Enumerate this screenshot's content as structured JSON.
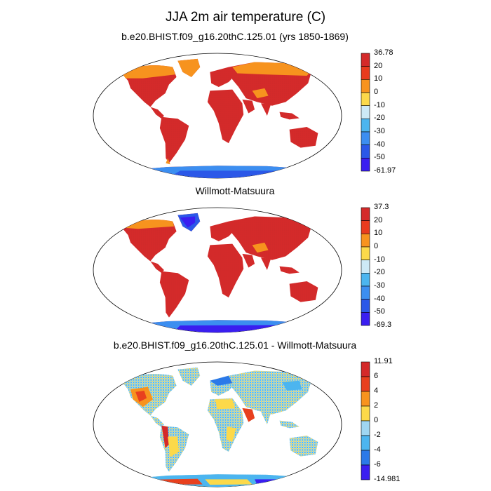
{
  "title": "JJA 2m air temperature (C)",
  "panels": [
    {
      "name": "model",
      "title": "b.e20.BHIST.f09_g16.20thC.125.01 (yrs 1850-1869)",
      "colorbar": {
        "labels": [
          "36.78",
          "20",
          "10",
          "0",
          "-10",
          "-20",
          "-30",
          "-40",
          "-50",
          "-61.97"
        ],
        "colors": [
          "#d42a2a",
          "#e83b1e",
          "#f7931e",
          "#fcd94a",
          "#cde9f6",
          "#4cb5ef",
          "#3c8ef0",
          "#2b58e8",
          "#3a1ef0"
        ]
      }
    },
    {
      "name": "obs",
      "title": "Willmott-Matsuura",
      "colorbar": {
        "labels": [
          "37.3",
          "20",
          "10",
          "0",
          "-10",
          "-20",
          "-30",
          "-40",
          "-50",
          "-69.3"
        ],
        "colors": [
          "#d42a2a",
          "#e83b1e",
          "#f7931e",
          "#fcd94a",
          "#cde9f6",
          "#4cb5ef",
          "#3c8ef0",
          "#2b58e8",
          "#3a1ef0"
        ]
      }
    },
    {
      "name": "diff",
      "title": "b.e20.BHIST.f09_g16.20thC.125.01 - Willmott-Matsuura",
      "colorbar": {
        "labels": [
          "11.91",
          "6",
          "4",
          "2",
          "0",
          "-2",
          "-4",
          "-6",
          "-14.981"
        ],
        "colors": [
          "#d42a2a",
          "#e8401e",
          "#f7931e",
          "#fcd94a",
          "#9fd6f2",
          "#4cb5ef",
          "#2b79e8",
          "#3a1ef0"
        ]
      }
    }
  ]
}
